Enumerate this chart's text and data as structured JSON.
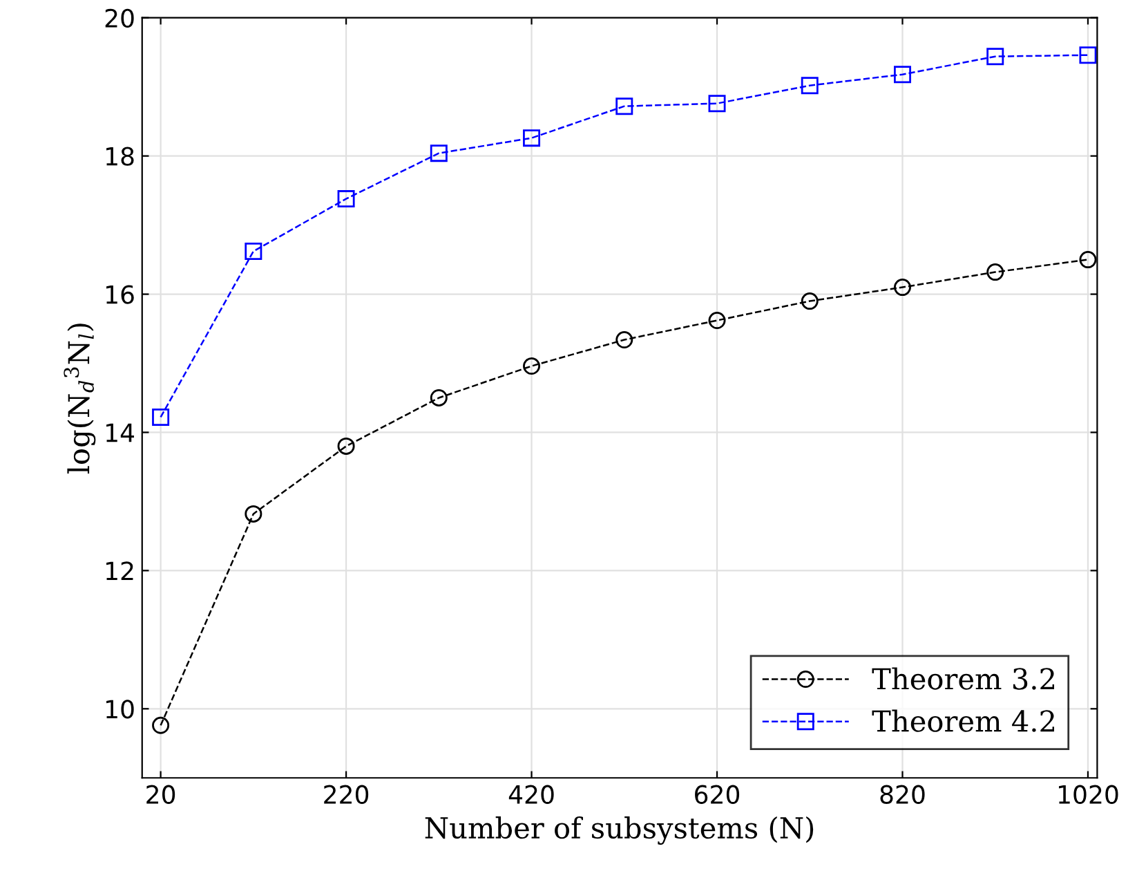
{
  "chart_data": {
    "type": "line",
    "xlabel": "Number of subsystems (N)",
    "ylabel": "log(N$_{d}$$^{3}$N$_{l}$)",
    "x": [
      20,
      120,
      220,
      320,
      420,
      520,
      620,
      720,
      820,
      920,
      1020
    ],
    "series": [
      {
        "name": "Theorem 3.2",
        "color": "#000000",
        "marker": "circle",
        "values": [
          9.76,
          12.82,
          13.8,
          14.5,
          14.96,
          15.34,
          15.62,
          15.9,
          16.1,
          16.32,
          16.5
        ]
      },
      {
        "name": "Theorem 4.2",
        "color": "#0000ff",
        "marker": "square",
        "values": [
          14.22,
          16.62,
          17.38,
          18.04,
          18.26,
          18.72,
          18.76,
          19.02,
          19.18,
          19.44,
          19.46
        ]
      }
    ],
    "xlim": [
      0,
      1030
    ],
    "xticks": [
      20,
      220,
      420,
      620,
      820,
      1020
    ],
    "ylim": [
      9,
      20
    ],
    "yticks": [
      10,
      12,
      14,
      16,
      18,
      20
    ],
    "grid": true,
    "legend": "bottom right",
    "line_style": "dashed"
  }
}
